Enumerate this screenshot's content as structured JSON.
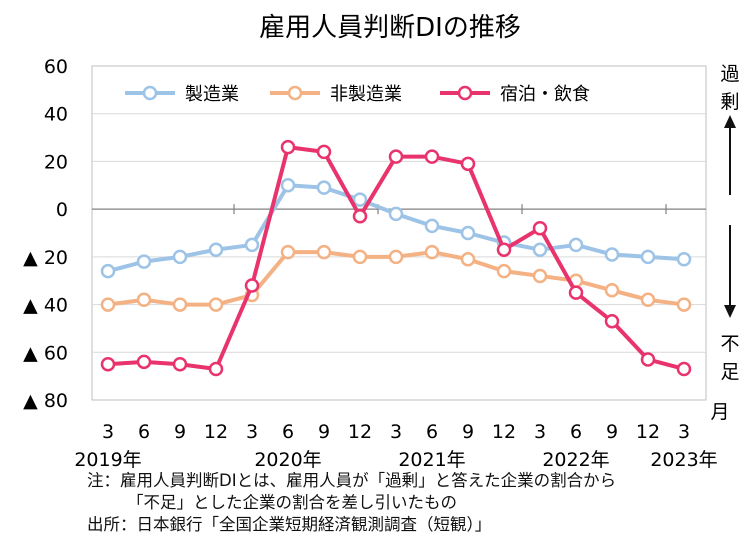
{
  "chart_data": {
    "type": "line",
    "title": "雇用人員判断DIの推移",
    "xlabel": "月",
    "ylabel": "",
    "ylim": [
      -80,
      60
    ],
    "yticks": [
      {
        "value": 60,
        "label": "60"
      },
      {
        "value": 40,
        "label": "40"
      },
      {
        "value": 20,
        "label": "20"
      },
      {
        "value": 0,
        "label": "0"
      },
      {
        "value": -20,
        "label": "▲ 20"
      },
      {
        "value": -40,
        "label": "▲ 40"
      },
      {
        "value": -60,
        "label": "▲ 60"
      },
      {
        "value": -80,
        "label": "▲ 80"
      }
    ],
    "categories": [
      "3",
      "6",
      "9",
      "12",
      "3",
      "6",
      "9",
      "12",
      "3",
      "6",
      "9",
      "12",
      "3",
      "6",
      "9",
      "12",
      "3"
    ],
    "year_labels": [
      {
        "index": 0,
        "label": "2019年"
      },
      {
        "index": 5,
        "label": "2020年"
      },
      {
        "index": 9,
        "label": "2021年"
      },
      {
        "index": 13,
        "label": "2022年"
      },
      {
        "index": 16,
        "label": "2023年"
      }
    ],
    "series": [
      {
        "name": "製造業",
        "color": "#9dc3e6",
        "values": [
          -26,
          -22,
          -20,
          -17,
          -15,
          10,
          9,
          4,
          -2,
          -7,
          -10,
          -14,
          -17,
          -15,
          -19,
          -20,
          -21
        ]
      },
      {
        "name": "非製造業",
        "color": "#f4b183",
        "values": [
          -40,
          -38,
          -40,
          -40,
          -36,
          -18,
          -18,
          -20,
          -20,
          -18,
          -21,
          -26,
          -28,
          -30,
          -34,
          -38,
          -40
        ]
      },
      {
        "name": "宿泊・飲食",
        "color": "#e8336d",
        "values": [
          -65,
          -64,
          -65,
          -67,
          -32,
          26,
          24,
          -3,
          22,
          22,
          19,
          -17,
          -8,
          -35,
          -47,
          -63,
          -67
        ]
      }
    ],
    "side_labels": {
      "top": "過剰",
      "bottom": "不足"
    },
    "legend": "top"
  },
  "notes": {
    "line1": "注：雇用人員判断DIとは、雇用人員が「過剰」と答えた企業の割合から",
    "line2": "「不足」とした企業の割合を差し引いたもの",
    "line3": "出所：日本銀行「全国企業短期経済観測調査（短観）」"
  }
}
